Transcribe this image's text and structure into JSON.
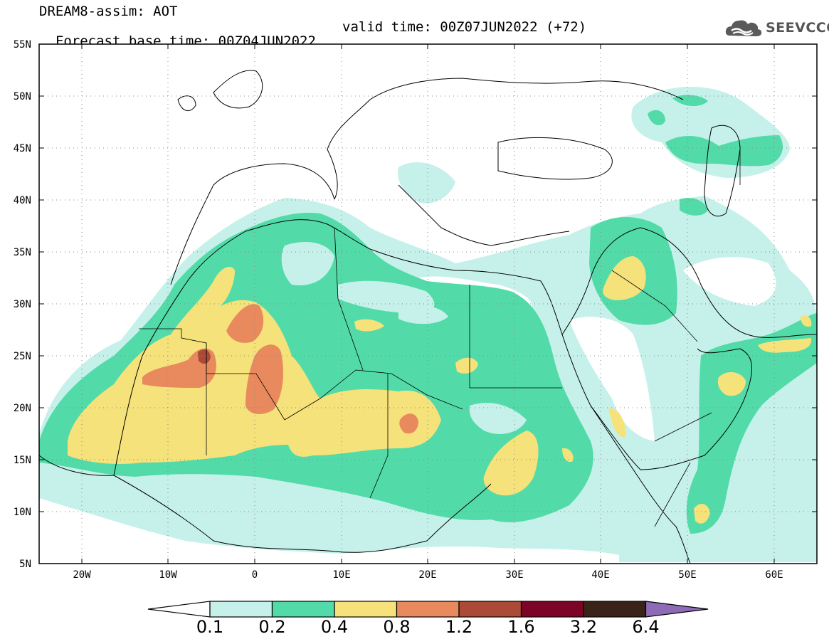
{
  "title": {
    "line1": "DREAM8-assim: AOT",
    "line2_base": "Forecast base time: 00Z04JUN2022",
    "line2_valid": "valid time: 00Z07JUN2022 (+72)"
  },
  "logo": {
    "text": "SEEVCCC",
    "icon": "cloud-logo-icon"
  },
  "axes": {
    "lat_labels": [
      "55N",
      "50N",
      "45N",
      "40N",
      "35N",
      "30N",
      "25N",
      "20N",
      "15N",
      "10N",
      "5N"
    ],
    "lon_labels": [
      "20W",
      "10W",
      "0",
      "10E",
      "20E",
      "30E",
      "40E",
      "50E",
      "60E"
    ]
  },
  "colorbar": {
    "levels": [
      "0.1",
      "0.2",
      "0.4",
      "0.8",
      "1.2",
      "1.6",
      "3.2",
      "6.4"
    ],
    "colors": [
      "#ffffff",
      "#c6f1ea",
      "#52dba8",
      "#f5e27a",
      "#e88a5e",
      "#ac4a38",
      "#7c0427",
      "#3a2418",
      "#8d6bb6"
    ]
  },
  "colors": {
    "c01": "#c6f1ea",
    "c02": "#52dba8",
    "c04": "#f5e27a",
    "c08": "#e88a5e",
    "c12": "#ac4a38"
  }
}
